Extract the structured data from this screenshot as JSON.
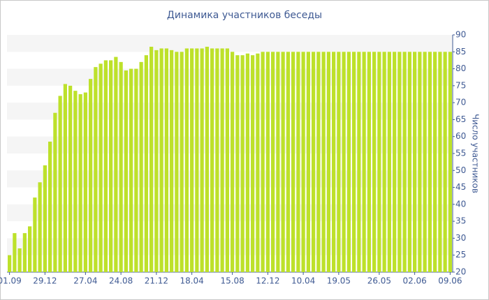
{
  "chart_data": {
    "type": "bar",
    "title": "Динамика участников беседы",
    "y_label": "Число участников",
    "categories": [
      "01.09",
      null,
      null,
      null,
      null,
      null,
      null,
      "29.12",
      null,
      null,
      null,
      null,
      null,
      null,
      null,
      "27.04",
      null,
      null,
      null,
      null,
      null,
      null,
      "24.08",
      null,
      null,
      null,
      null,
      null,
      null,
      "21.12",
      null,
      null,
      null,
      null,
      null,
      null,
      "18.04",
      null,
      null,
      null,
      null,
      null,
      null,
      null,
      "15.08",
      null,
      null,
      null,
      null,
      null,
      null,
      "12.12",
      null,
      null,
      null,
      null,
      null,
      null,
      "10.04",
      null,
      null,
      null,
      null,
      null,
      null,
      "19.05",
      null,
      null,
      null,
      null,
      null,
      null,
      null,
      "26.05",
      null,
      null,
      null,
      null,
      null,
      null,
      "02.06",
      null,
      null,
      null,
      null,
      null,
      null,
      "09.06"
    ],
    "values": [
      25,
      31.5,
      27,
      31.5,
      33.5,
      42,
      46.5,
      51.5,
      58.5,
      67,
      72,
      75.5,
      75,
      73.5,
      72.5,
      73,
      77,
      80.5,
      81.5,
      82.5,
      82.5,
      83.5,
      82,
      79.5,
      80,
      80,
      82,
      84,
      86.5,
      85.5,
      86,
      86,
      85.5,
      85,
      85,
      86,
      86,
      86,
      86,
      86.5,
      86,
      86,
      86,
      86,
      85,
      84,
      84,
      84.5,
      84,
      84.5,
      85,
      85,
      85,
      85,
      85,
      85,
      85,
      85,
      85,
      85,
      85,
      85,
      85,
      85,
      85,
      85,
      85,
      85,
      85,
      85,
      85,
      85,
      85,
      85,
      85,
      85,
      85,
      85,
      85,
      85,
      85,
      85,
      85,
      85,
      85,
      85,
      85,
      85
    ],
    "color": "#bde12a",
    "ylim": [
      20,
      90
    ],
    "yticks": [
      20,
      25,
      30,
      35,
      40,
      45,
      50,
      55,
      60,
      65,
      70,
      75,
      80,
      85,
      90
    ],
    "y_axis_side": "right",
    "grid": "bands"
  }
}
